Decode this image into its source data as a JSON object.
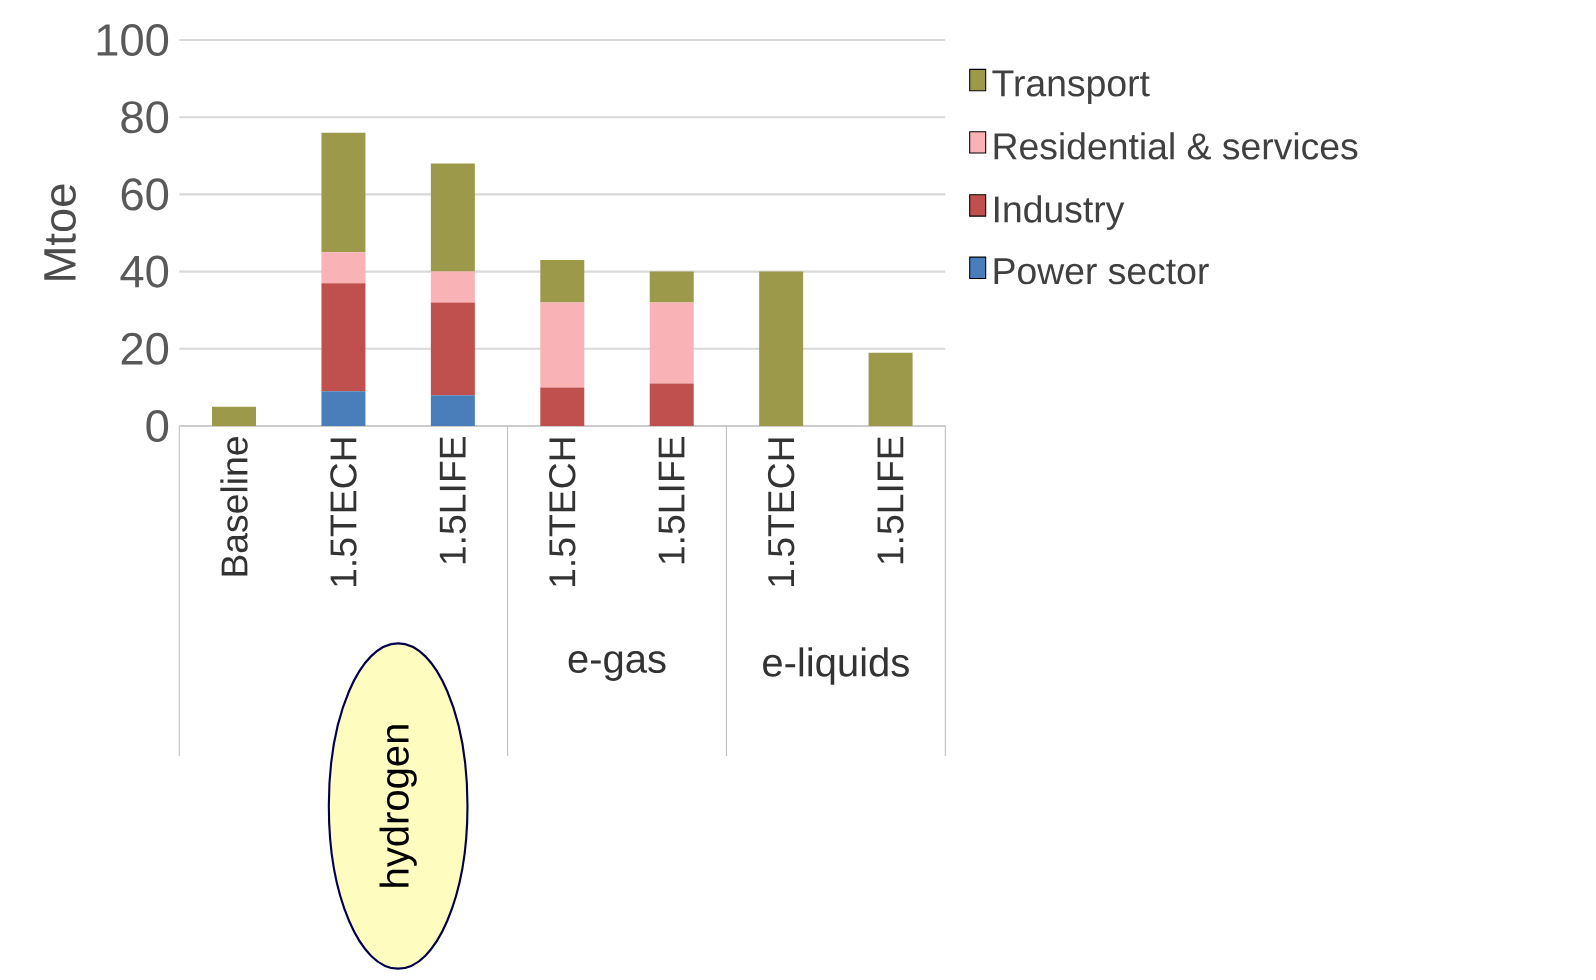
{
  "chart_data": {
    "type": "bar",
    "stacked": true,
    "ylabel": "Mtoe",
    "categories": [
      "Baseline",
      "1.5TECH",
      "1.5LIFE",
      "1.5TECH",
      "1.5LIFE",
      "1.5TECH",
      "1.5LIFE"
    ],
    "series": [
      {
        "name": "Power sector",
        "color": "#4a7ebb",
        "values": [
          0,
          9,
          8,
          0,
          0,
          0,
          0
        ]
      },
      {
        "name": "Industry",
        "color": "#c0504d",
        "values": [
          0,
          28,
          24,
          10,
          11,
          0,
          0
        ]
      },
      {
        "name": "Residential & services",
        "color": "#f9b2b5",
        "values": [
          0,
          8,
          8,
          22,
          21,
          0,
          0
        ]
      },
      {
        "name": "Transport",
        "color": "#9c9a4a",
        "values": [
          5,
          31,
          28,
          11,
          8,
          40,
          19
        ]
      }
    ],
    "annotations": [
      "hydrogen",
      "e-gas",
      "e-liquids"
    ],
    "ylim": [
      0,
      100
    ],
    "yticks": [
      0,
      20,
      40,
      60,
      80,
      100
    ],
    "grid": "y",
    "legend": "right"
  }
}
